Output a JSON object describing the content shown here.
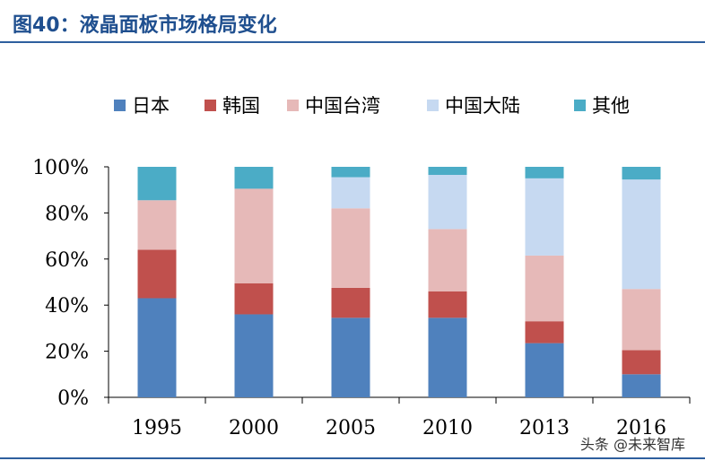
{
  "title": "图40：液晶面板市场格局变化",
  "watermark": "头条 @未来智库",
  "chart_data": {
    "type": "bar",
    "stacked": true,
    "categories": [
      "1995",
      "2000",
      "2005",
      "2010",
      "2013",
      "2016"
    ],
    "series": [
      {
        "name": "日本",
        "color": "#4f81bd",
        "values": [
          43,
          36,
          34.5,
          34.5,
          23.5,
          10
        ]
      },
      {
        "name": "韩国",
        "color": "#c0504d",
        "values": [
          21,
          13.5,
          13,
          11.5,
          9.5,
          10.5
        ]
      },
      {
        "name": "中国台湾",
        "color": "#e6b9b8",
        "values": [
          21.5,
          41,
          34.5,
          27,
          28.5,
          26.5
        ]
      },
      {
        "name": "中国大陆",
        "color": "#c6d9f1",
        "values": [
          0,
          0,
          13.5,
          23.5,
          33.5,
          47.5
        ]
      },
      {
        "name": "其他",
        "color": "#4bacc6",
        "values": [
          14.5,
          9.5,
          4.5,
          3.5,
          5,
          5.5
        ]
      }
    ],
    "ylim": [
      0,
      100
    ],
    "yticks": [
      "0%",
      "20%",
      "40%",
      "60%",
      "80%",
      "100%"
    ],
    "grid": false,
    "legend": "top"
  }
}
